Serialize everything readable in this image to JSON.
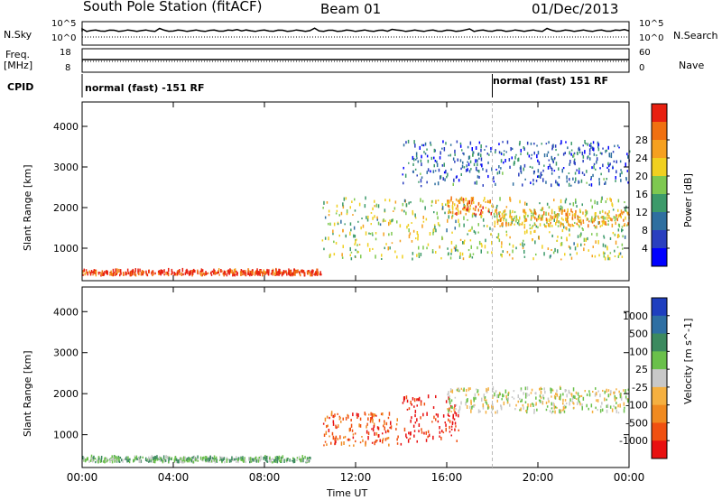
{
  "header": {
    "station": "South Pole Station (fitACF)",
    "beam": "Beam 01",
    "date": "01/Dec/2013"
  },
  "side_labels": {
    "nsky": "N.Sky",
    "freq_line1": "Freq.",
    "freq_line2": "[MHz]",
    "cpid": "CPID",
    "nsearch": "N.Search",
    "nave": "Nave"
  },
  "small_panels": {
    "noise_ticks_left": [
      "10^5",
      "10^0"
    ],
    "noise_ticks_right": [
      "10^5",
      "10^0"
    ],
    "freq_ticks": [
      "18",
      "8"
    ],
    "nave_ticks": [
      "60",
      "0"
    ]
  },
  "cpid": {
    "mode1": "normal (fast) -151 RF",
    "mode2": "normal (fast) 151 RF",
    "switch_hour": 18.0
  },
  "chart_data": [
    {
      "type": "heatmap",
      "panel": "power",
      "ylabel": "Slant Range [km]",
      "xlabel": "Time UT",
      "x_ticks": [
        "00:00",
        "04:00",
        "08:00",
        "12:00",
        "16:00",
        "20:00",
        "00:00"
      ],
      "x_tick_hours": [
        0,
        4,
        8,
        12,
        16,
        20,
        24
      ],
      "xlim": [
        0,
        24
      ],
      "y_ticks": [
        1000,
        2000,
        3000,
        4000
      ],
      "ylim": [
        200,
        4600
      ],
      "colorbar": {
        "label": "Power [dB]",
        "ticks": [
          "4",
          "8",
          "12",
          "16",
          "20",
          "24",
          "28"
        ],
        "colors": [
          "#0000ff",
          "#2a3fbf",
          "#2f6fa0",
          "#3c9a6a",
          "#7ec850",
          "#f0d020",
          "#f5a020",
          "#f07010",
          "#e82010"
        ]
      },
      "features": [
        {
          "name": "near-range band",
          "hours": [
            0,
            10.5
          ],
          "range_km": [
            300,
            420
          ],
          "power_db": 28
        },
        {
          "name": "main echo band",
          "hours": [
            10.5,
            24
          ],
          "range_km": [
            700,
            2200
          ],
          "power_db": 16
        },
        {
          "name": "afternoon peak",
          "hours": [
            16,
            18
          ],
          "range_km": [
            1800,
            2200
          ],
          "power_db": 24
        },
        {
          "name": "evening layer",
          "hours": [
            18,
            24
          ],
          "range_km": [
            1500,
            1900
          ],
          "power_db": 20
        },
        {
          "name": "scattered far-range",
          "hours": [
            14,
            24
          ],
          "range_km": [
            2500,
            3600
          ],
          "power_db": 8
        }
      ]
    },
    {
      "type": "heatmap",
      "panel": "velocity",
      "ylabel": "Slant Range [km]",
      "xlabel": "Time UT",
      "x_ticks": [
        "00:00",
        "04:00",
        "08:00",
        "12:00",
        "16:00",
        "20:00",
        "00:00"
      ],
      "x_tick_hours": [
        0,
        4,
        8,
        12,
        16,
        20,
        24
      ],
      "xlim": [
        0,
        24
      ],
      "y_ticks": [
        1000,
        2000,
        3000,
        4000
      ],
      "ylim": [
        200,
        4600
      ],
      "colorbar": {
        "label": "Velocity [m s^-1]",
        "ticks": [
          "1000",
          "500",
          "100",
          "25",
          "-25",
          "-100",
          "-500",
          "-1000"
        ],
        "colors": [
          "#1f3fbf",
          "#2e6fa3",
          "#3c8a5f",
          "#6ac04a",
          "#c8c8c8",
          "#f5b040",
          "#f08a20",
          "#f05010",
          "#e81010"
        ]
      },
      "features": [
        {
          "name": "near-range ground scatter",
          "hours": [
            0,
            10
          ],
          "range_km": [
            300,
            420
          ],
          "velocity": 25
        },
        {
          "name": "strong negative patch",
          "hours": [
            14,
            16.5
          ],
          "range_km": [
            800,
            1900
          ],
          "velocity": -1000
        },
        {
          "name": "grey band",
          "hours": [
            16,
            24
          ],
          "range_km": [
            1500,
            2100
          ],
          "velocity": 0
        },
        {
          "name": "orange streaks",
          "hours": [
            10.5,
            14
          ],
          "range_km": [
            700,
            1500
          ],
          "velocity": -500
        }
      ]
    }
  ]
}
